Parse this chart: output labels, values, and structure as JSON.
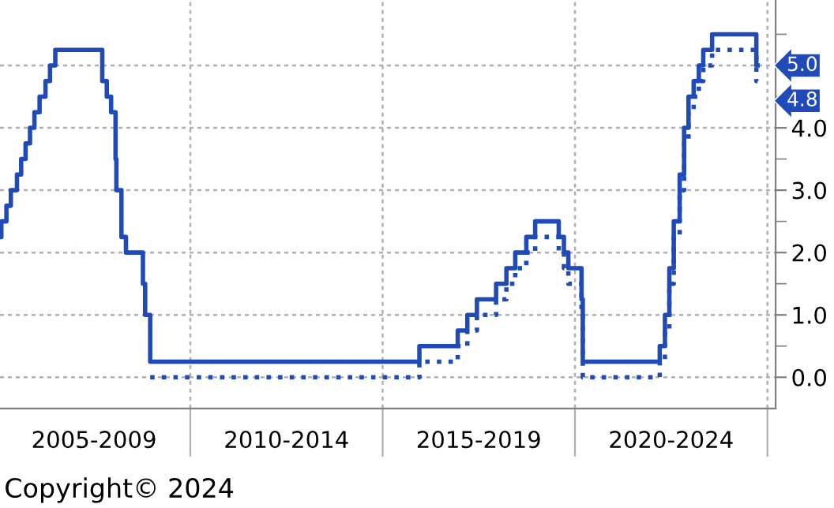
{
  "chart_data": {
    "type": "step",
    "xlim": [
      "2005-01-20",
      "2025-03-20"
    ],
    "xticks": [
      {
        "value": "2010-01-01",
        "label": null
      },
      {
        "value": "2015-01-01",
        "label": null
      },
      {
        "value": "2020-01-01",
        "label": null
      },
      {
        "value": "2025-01-01",
        "label": null
      },
      {
        "value": "2007-07-02",
        "label": "2005-2009"
      },
      {
        "value": "2012-07-02",
        "label": "2010-2014"
      },
      {
        "value": "2017-07-02",
        "label": "2015-2019"
      },
      {
        "value": "2022-07-02",
        "label": "2020-2024"
      }
    ],
    "ylim": [
      -0.5,
      6.05
    ],
    "yticks": [
      {
        "value": 0,
        "label": "0.0"
      },
      {
        "value": 1,
        "label": "1.0"
      },
      {
        "value": 2,
        "label": "2.0"
      },
      {
        "value": 3,
        "label": "3.0"
      },
      {
        "value": 4,
        "label": "4.0"
      },
      {
        "value": 5,
        "label": null
      },
      {
        "value": 0.5,
        "label": null
      },
      {
        "value": 1.5,
        "label": null
      },
      {
        "value": 2.5,
        "label": null
      },
      {
        "value": 3.5,
        "label": null
      },
      {
        "value": 4.5,
        "label": null
      },
      {
        "value": 5.5,
        "label": null
      }
    ],
    "grid": true,
    "series": [
      {
        "color": "#1f4ab8",
        "line_style": "solid",
        "x": [
          "2005-01-20",
          "2005-02-02",
          "2005-03-22",
          "2005-05-03",
          "2005-06-30",
          "2005-08-09",
          "2005-09-20",
          "2005-11-01",
          "2005-12-13",
          "2006-01-31",
          "2006-03-28",
          "2006-05-10",
          "2006-06-29",
          "2007-09-18",
          "2007-10-31",
          "2007-12-11",
          "2008-01-22",
          "2008-01-30",
          "2008-03-18",
          "2008-04-30",
          "2008-10-08",
          "2008-10-29",
          "2008-12-16",
          "2015-12-16",
          "2016-12-14",
          "2017-03-15",
          "2017-06-14",
          "2017-12-13",
          "2018-03-21",
          "2018-06-13",
          "2018-09-26",
          "2018-12-19",
          "2019-07-31",
          "2019-09-18",
          "2019-10-30",
          "2020-03-03",
          "2020-03-15",
          "2022-03-16",
          "2022-05-04",
          "2022-06-15",
          "2022-07-27",
          "2022-09-21",
          "2022-11-02",
          "2022-12-14",
          "2023-02-01",
          "2023-03-22",
          "2023-05-03",
          "2023-07-26",
          "2024-09-18",
          "2024-09-30"
        ],
        "values": [
          2.25,
          2.5,
          2.75,
          3.0,
          3.25,
          3.5,
          3.75,
          4.0,
          4.25,
          4.5,
          4.75,
          5.0,
          5.25,
          4.75,
          4.5,
          4.25,
          3.5,
          3.0,
          2.25,
          2.0,
          1.5,
          1.0,
          0.25,
          0.5,
          0.75,
          1.0,
          1.25,
          1.5,
          1.75,
          2.0,
          2.25,
          2.5,
          2.25,
          2.0,
          1.75,
          1.25,
          0.25,
          0.5,
          1.0,
          1.75,
          2.5,
          3.25,
          4.0,
          4.5,
          4.75,
          5.0,
          5.25,
          5.5,
          5.0,
          5.0
        ]
      },
      {
        "color": "#1f4ab8",
        "line_style": "dotted",
        "x": [
          "2008-12-16",
          "2015-12-16",
          "2016-12-14",
          "2017-03-15",
          "2017-06-14",
          "2017-12-13",
          "2018-03-21",
          "2018-06-13",
          "2018-09-26",
          "2018-12-19",
          "2019-07-31",
          "2019-09-18",
          "2019-10-30",
          "2020-03-03",
          "2020-03-15",
          "2022-03-16",
          "2022-05-04",
          "2022-06-15",
          "2022-07-27",
          "2022-09-21",
          "2022-11-02",
          "2022-12-14",
          "2023-02-01",
          "2023-03-22",
          "2023-05-03",
          "2023-07-26",
          "2024-09-18",
          "2024-09-30"
        ],
        "values": [
          0.0,
          0.25,
          0.5,
          0.75,
          1.0,
          1.25,
          1.5,
          1.75,
          2.0,
          2.25,
          2.0,
          1.75,
          1.5,
          1.0,
          0.0,
          0.25,
          0.75,
          1.5,
          2.25,
          3.0,
          3.75,
          4.25,
          4.5,
          4.75,
          5.0,
          5.25,
          4.75,
          4.75
        ]
      }
    ],
    "annotations": [
      "5.0",
      "4.8",
      "Copyright© 2024"
    ]
  }
}
